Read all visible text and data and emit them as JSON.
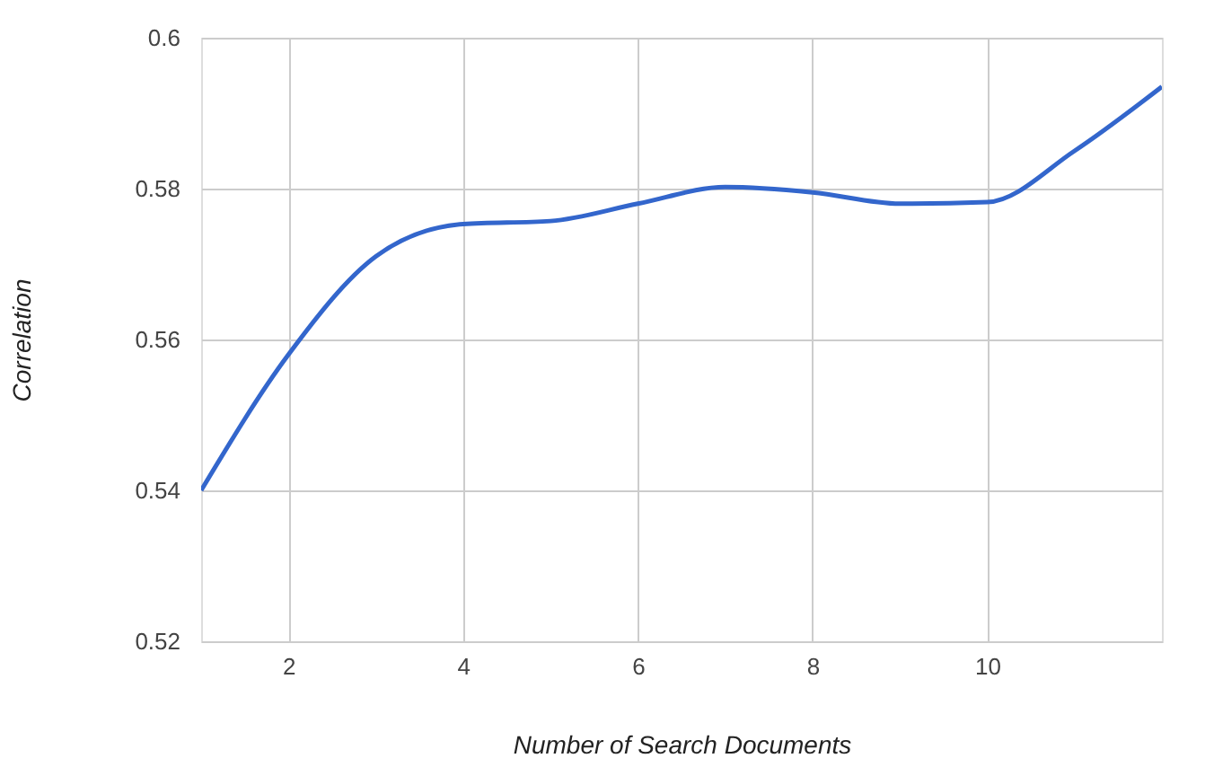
{
  "chart_data": {
    "type": "line",
    "xlabel": "Number of Search Documents",
    "ylabel": "Correlation",
    "x": [
      1,
      2,
      3,
      4,
      5,
      6,
      7,
      8,
      9,
      10,
      11,
      12
    ],
    "series": [
      {
        "color": "#3366cc",
        "values": [
          0.54,
          0.558,
          0.571,
          0.5753,
          0.5757,
          0.578,
          0.5802,
          0.5795,
          0.578,
          0.5782,
          0.585,
          0.5935
        ]
      }
    ],
    "xlim": [
      1,
      12
    ],
    "xticks": [
      2,
      4,
      6,
      8,
      10
    ],
    "ylim": [
      0.52,
      0.6
    ],
    "yticks": [
      0.52,
      0.54,
      0.56,
      0.58,
      {
        "value": 0.6,
        "label": "0.6"
      }
    ],
    "grid": true,
    "marker": "none",
    "line_style": "solid"
  }
}
